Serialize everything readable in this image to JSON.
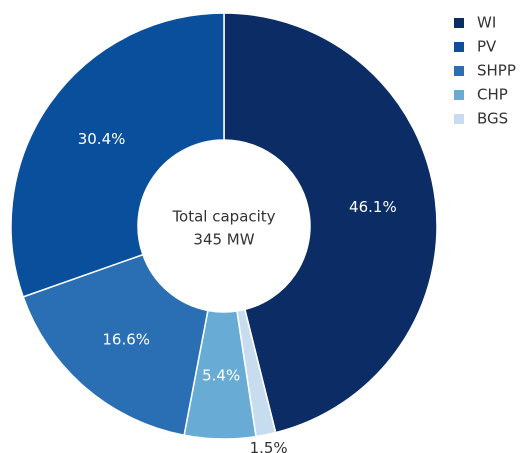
{
  "chart_data": {
    "type": "donut",
    "center_label": [
      "Total capacity",
      "345 MW"
    ],
    "categories": [
      "WI",
      "PV",
      "SHPP",
      "CHP",
      "BGS"
    ],
    "values": [
      46.1,
      30.4,
      16.6,
      5.4,
      1.5
    ],
    "value_labels": [
      "46.1%",
      "30.4%",
      "16.6%",
      "5.4%",
      "1.5%"
    ],
    "colors": [
      "#0b2c64",
      "#0a4f9c",
      "#2a6fb3",
      "#68acd6",
      "#c8dcf0"
    ],
    "legend": "right"
  }
}
